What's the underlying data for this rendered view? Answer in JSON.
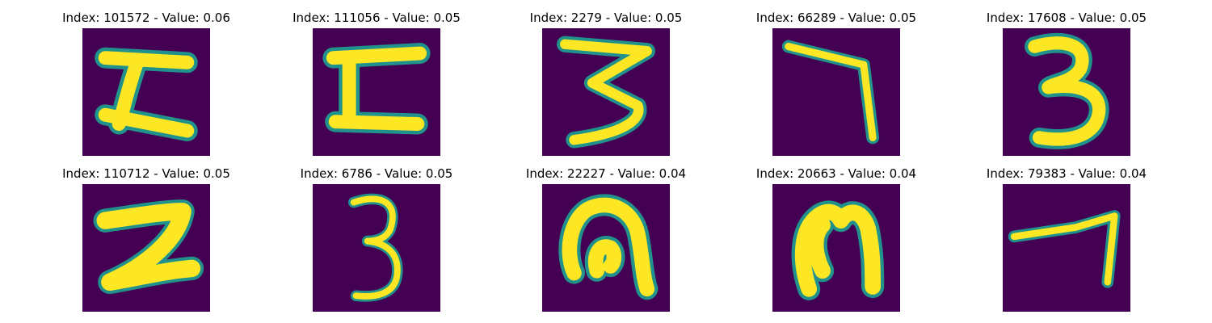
{
  "grid": {
    "background_color": "#440154",
    "stroke_color": "#fde725",
    "edge_color": "#21918c",
    "items": [
      {
        "title": "Index: 101572 - Value: 0.06",
        "index": 101572,
        "value": 0.06,
        "glyph": "Z-like"
      },
      {
        "title": "Index: 111056 - Value: 0.05",
        "index": 111056,
        "value": 0.05,
        "glyph": "Z-like"
      },
      {
        "title": "Index: 2279 - Value: 0.05",
        "index": 2279,
        "value": 0.05,
        "glyph": "3"
      },
      {
        "title": "Index: 66289 - Value: 0.05",
        "index": 66289,
        "value": 0.05,
        "glyph": "7"
      },
      {
        "title": "Index: 17608 - Value: 0.05",
        "index": 17608,
        "value": 0.05,
        "glyph": "3"
      },
      {
        "title": "Index: 110712 - Value: 0.05",
        "index": 110712,
        "value": 0.05,
        "glyph": "2"
      },
      {
        "title": "Index: 6786 - Value: 0.05",
        "index": 6786,
        "value": 0.05,
        "glyph": "3"
      },
      {
        "title": "Index: 22227 - Value: 0.04",
        "index": 22227,
        "value": 0.04,
        "glyph": "n-like"
      },
      {
        "title": "Index: 20663 - Value: 0.04",
        "index": 20663,
        "value": 0.04,
        "glyph": "n-like"
      },
      {
        "title": "Index: 79383 - Value: 0.04",
        "index": 79383,
        "value": 0.04,
        "glyph": "7"
      }
    ]
  }
}
